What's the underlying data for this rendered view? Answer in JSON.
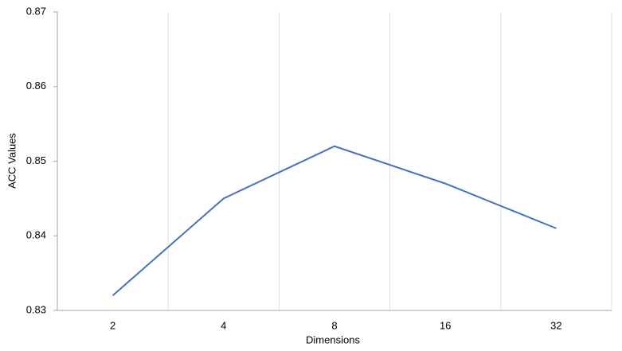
{
  "chart_data": {
    "type": "line",
    "x_label": "Dimensions",
    "y_label": "ACC Values",
    "categories": [
      "2",
      "4",
      "8",
      "16",
      "32"
    ],
    "values": [
      0.832,
      0.845,
      0.852,
      0.847,
      0.841
    ],
    "color": "#4472c4",
    "ylim": [
      0.83,
      0.87
    ],
    "yticks": [
      0.83,
      0.84,
      0.85,
      0.86,
      0.87
    ]
  }
}
